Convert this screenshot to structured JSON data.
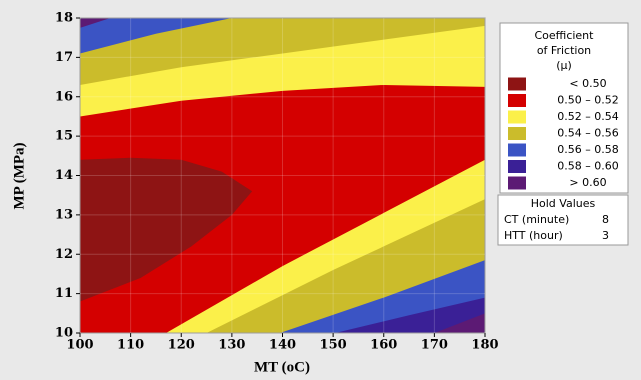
{
  "chart_data": {
    "type": "contour",
    "xlabel": "MT (oC)",
    "ylabel": "MP (MPa)",
    "xlim": [
      100,
      180
    ],
    "ylim": [
      10,
      18
    ],
    "xticks": [
      100,
      110,
      120,
      130,
      140,
      150,
      160,
      170,
      180
    ],
    "yticks": [
      10,
      11,
      12,
      13,
      14,
      15,
      16,
      17,
      18
    ],
    "grid": true,
    "legend_title": [
      "Coefficient",
      "of Friction",
      "(μ)"
    ],
    "levels": [
      {
        "label": "< 0.50",
        "color": "#8e1414",
        "regions": [
          {
            "x": [
              100,
              110,
              120,
              128,
              134,
              130,
              122,
              112,
              100
            ],
            "y": [
              14.4,
              14.45,
              14.4,
              14.1,
              13.6,
              13.0,
              12.2,
              11.4,
              10.8
            ]
          }
        ]
      },
      {
        "label": "0.50 – 0.52",
        "color": "#d40000",
        "regions": [
          {
            "x": [
              100,
              180,
              180,
              100
            ],
            "y": [
              10,
              10,
              18,
              18
            ]
          }
        ]
      },
      {
        "label": "0.52 – 0.54",
        "color": "#fbf04a",
        "regions": [
          {
            "x": [
              100,
              120,
              140,
              160,
              180,
              180,
              100
            ],
            "y": [
              15.5,
              15.9,
              16.15,
              16.3,
              16.25,
              18,
              18
            ]
          },
          {
            "x": [
              117,
              140,
              160,
              180,
              180
            ],
            "y": [
              10,
              11.7,
              13.05,
              14.4,
              10
            ]
          }
        ]
      },
      {
        "label": "0.54 – 0.56",
        "color": "#cbbc2b",
        "regions": [
          {
            "x": [
              100,
              120,
              140,
              160,
              180,
              180,
              100
            ],
            "y": [
              16.3,
              16.75,
              17.1,
              17.45,
              17.8,
              18,
              18
            ]
          },
          {
            "x": [
              125,
              150,
              180,
              180
            ],
            "y": [
              10,
              11.6,
              13.4,
              10
            ]
          }
        ]
      },
      {
        "label": "0.56 – 0.58",
        "color": "#3b54c4",
        "regions": [
          {
            "x": [
              100,
              115,
              130,
              100
            ],
            "y": [
              17.1,
              17.6,
              18,
              18
            ]
          },
          {
            "x": [
              139.5,
              160,
              180,
              180
            ],
            "y": [
              10,
              10.9,
              11.85,
              10
            ]
          }
        ]
      },
      {
        "label": "0.58 – 0.60",
        "color": "#3a2096",
        "regions": [
          {
            "x": [
              150.4,
              165,
              180,
              180
            ],
            "y": [
              10,
              10.45,
              10.9,
              10
            ]
          }
        ]
      },
      {
        "label": "> 0.60",
        "color": "#5c1a74",
        "regions": [
          {
            "x": [
              100,
              106,
              100
            ],
            "y": [
              17.75,
              18,
              18
            ]
          },
          {
            "x": [
              170,
              180,
              180
            ],
            "y": [
              10,
              10.5,
              10
            ]
          }
        ]
      }
    ],
    "hold_values": {
      "title": "Hold Values",
      "items": [
        {
          "name": "CT (minute)",
          "value": 8
        },
        {
          "name": "HTT (hour)",
          "value": 3
        }
      ]
    }
  }
}
